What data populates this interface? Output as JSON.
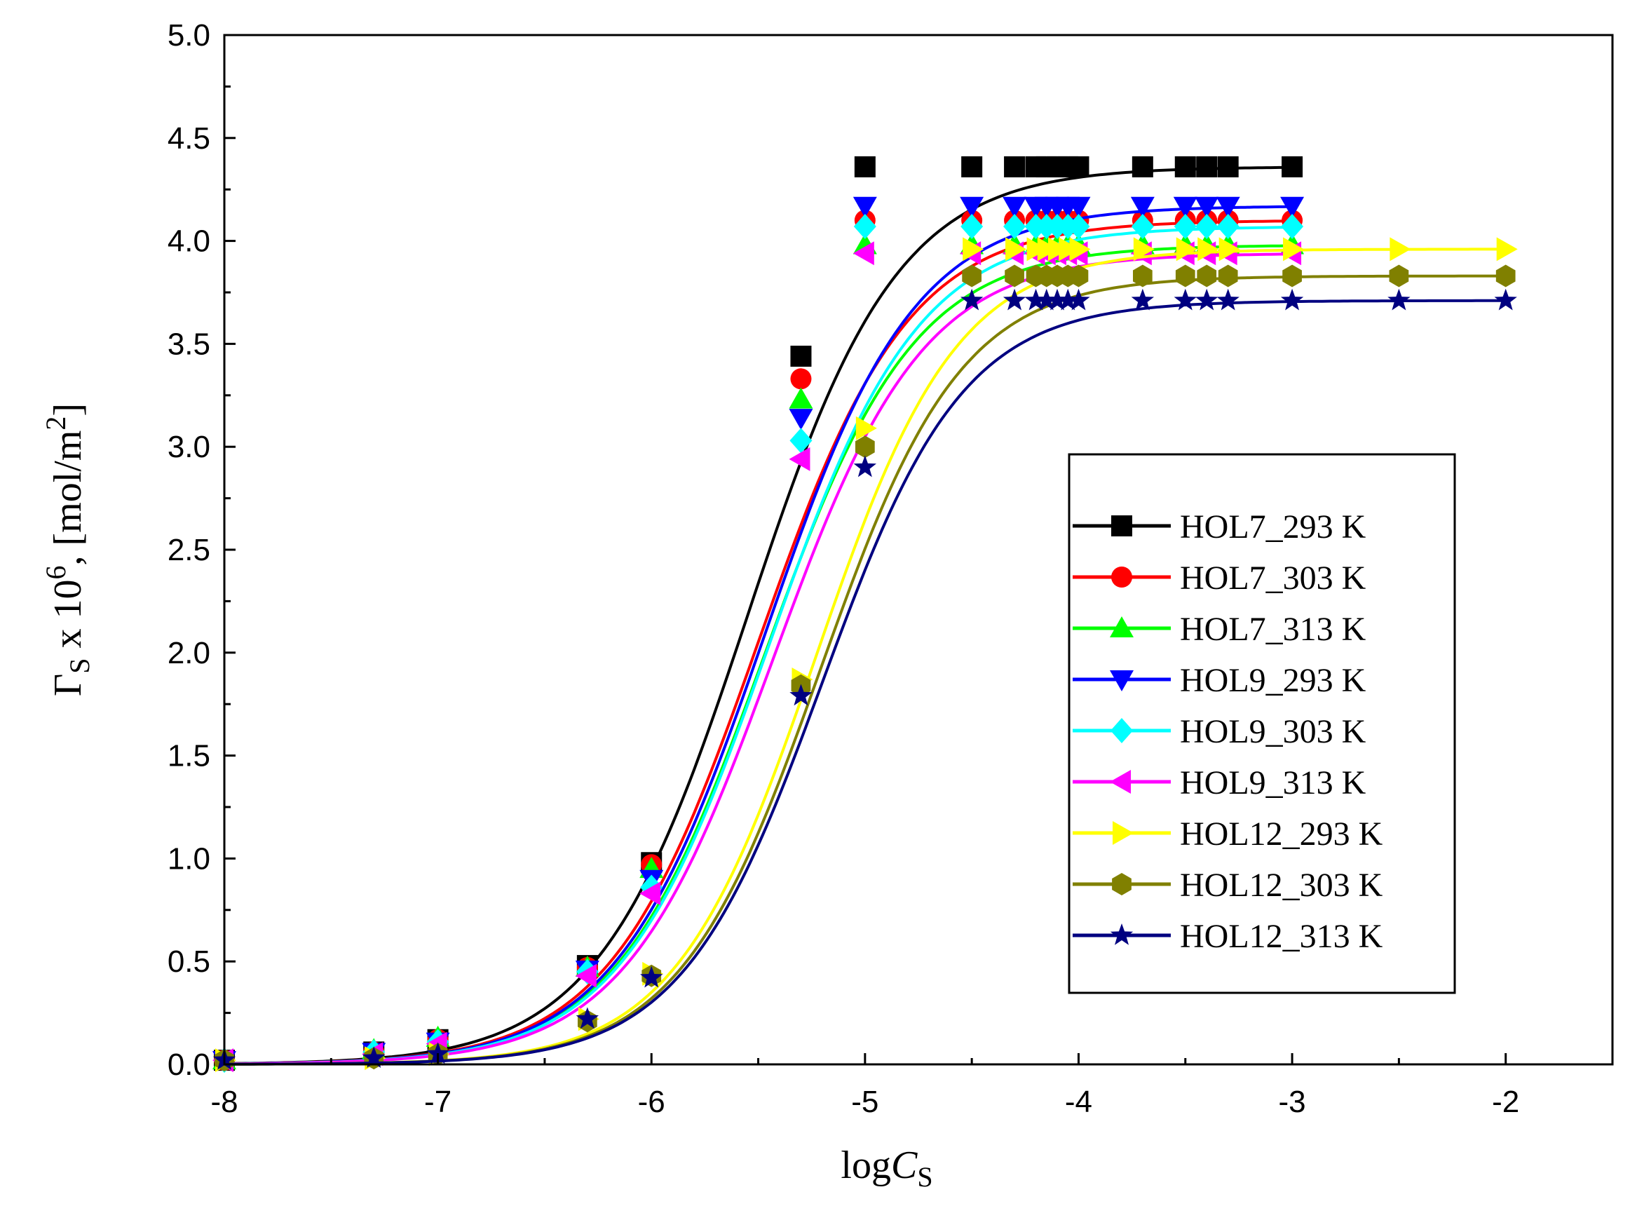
{
  "chart_data": {
    "type": "line",
    "title": "",
    "xlabel": "logC_S",
    "xlabel_parts": {
      "prefix": "log",
      "var": "C",
      "sub": "S"
    },
    "ylabel": "Γ_S x 10^6, [mol/m^2]",
    "ylabel_parts": {
      "gamma": "Γ",
      "sub": "S",
      "mid": " x 10",
      "exp": "6",
      "unit": ", [mol/m",
      "unit_exp": "2",
      "close": "]"
    },
    "xlim": [
      -8,
      -1.5
    ],
    "ylim": [
      0,
      5
    ],
    "x_ticks": [
      -8,
      -7,
      -6,
      -5,
      -4,
      -3,
      -2
    ],
    "x_tick_labels": [
      "-8",
      "-7",
      "-6",
      "-5",
      "-4",
      "-3",
      "-2"
    ],
    "y_ticks": [
      0,
      0.5,
      1,
      1.5,
      2,
      2.5,
      3,
      3.5,
      4,
      4.5,
      5
    ],
    "y_tick_labels": [
      "0.0",
      "0.5",
      "1.0",
      "1.5",
      "2.0",
      "2.5",
      "3.0",
      "3.5",
      "4.0",
      "4.5",
      "5.0"
    ],
    "legend_position": "middle-right",
    "grid": false,
    "series": [
      {
        "name": "HOL7_293 K",
        "color": "#000000",
        "marker": "square",
        "plateau": 4.36,
        "x50": -5.55,
        "width": 0.35,
        "x": [
          -8,
          -7.3,
          -7,
          -6.3,
          -6,
          -5.3,
          -5,
          -4.5,
          -4.3,
          -4.2,
          -4.15,
          -4.1,
          -4.05,
          -4,
          -3.7,
          -3.5,
          -3.4,
          -3.3,
          -3
        ],
        "y": [
          0.02,
          0.06,
          0.12,
          0.48,
          0.98,
          3.44,
          4.36,
          4.36,
          4.36,
          4.36,
          4.36,
          4.36,
          4.36,
          4.36,
          4.36,
          4.36,
          4.36,
          4.36,
          4.36
        ]
      },
      {
        "name": "HOL7_303 K",
        "color": "#ff0000",
        "marker": "circle",
        "plateau": 4.1,
        "x50": -5.5,
        "width": 0.35,
        "x": [
          -8,
          -7.3,
          -7,
          -6.3,
          -6,
          -5.3,
          -5,
          -4.5,
          -4.3,
          -4.2,
          -4.15,
          -4.1,
          -4.05,
          -4,
          -3.7,
          -3.5,
          -3.4,
          -3.3,
          -3
        ],
        "y": [
          0.02,
          0.06,
          0.12,
          0.47,
          0.97,
          3.33,
          4.1,
          4.1,
          4.1,
          4.1,
          4.1,
          4.1,
          4.1,
          4.1,
          4.1,
          4.1,
          4.1,
          4.1,
          4.1
        ]
      },
      {
        "name": "HOL7_313 K",
        "color": "#00ff00",
        "marker": "triangle-up",
        "plateau": 3.98,
        "x50": -5.47,
        "width": 0.35,
        "x": [
          -8,
          -7.3,
          -7,
          -6.3,
          -6,
          -5.3,
          -5,
          -4.5,
          -4.3,
          -4.2,
          -4.15,
          -4.1,
          -4.05,
          -4,
          -3.7,
          -3.5,
          -3.4,
          -3.3,
          -3
        ],
        "y": [
          0.02,
          0.07,
          0.13,
          0.47,
          0.95,
          3.23,
          3.98,
          3.98,
          3.98,
          3.98,
          3.98,
          3.98,
          3.98,
          3.98,
          3.98,
          3.98,
          3.98,
          3.98,
          3.98
        ]
      },
      {
        "name": "HOL9_293 K",
        "color": "#0000ff",
        "marker": "triangle-down",
        "plateau": 4.17,
        "x50": -5.47,
        "width": 0.35,
        "x": [
          -8,
          -7.3,
          -7,
          -6.3,
          -6,
          -5.3,
          -5,
          -4.5,
          -4.3,
          -4.2,
          -4.15,
          -4.1,
          -4.05,
          -4,
          -3.7,
          -3.5,
          -3.4,
          -3.3,
          -3
        ],
        "y": [
          0.02,
          0.06,
          0.11,
          0.46,
          0.9,
          3.14,
          4.17,
          4.17,
          4.17,
          4.17,
          4.17,
          4.17,
          4.17,
          4.17,
          4.17,
          4.17,
          4.17,
          4.17,
          4.17
        ]
      },
      {
        "name": "HOL9_303 K",
        "color": "#00ffff",
        "marker": "diamond",
        "plateau": 4.07,
        "x50": -5.45,
        "width": 0.35,
        "x": [
          -8,
          -7.3,
          -7,
          -6.3,
          -6,
          -5.3,
          -5,
          -4.5,
          -4.3,
          -4.2,
          -4.15,
          -4.1,
          -4.05,
          -4,
          -3.7,
          -3.5,
          -3.4,
          -3.3,
          -3
        ],
        "y": [
          0.02,
          0.06,
          0.11,
          0.45,
          0.86,
          3.03,
          4.07,
          4.07,
          4.07,
          4.07,
          4.07,
          4.07,
          4.07,
          4.07,
          4.07,
          4.07,
          4.07,
          4.07,
          4.07
        ]
      },
      {
        "name": "HOL9_313 K",
        "color": "#ff00ff",
        "marker": "triangle-left",
        "plateau": 3.94,
        "x50": -5.43,
        "width": 0.35,
        "x": [
          -8,
          -7.3,
          -7,
          -6.3,
          -6,
          -5.3,
          -5,
          -4.5,
          -4.3,
          -4.2,
          -4.15,
          -4.1,
          -4.05,
          -4,
          -3.7,
          -3.5,
          -3.4,
          -3.3,
          -3
        ],
        "y": [
          0.02,
          0.05,
          0.1,
          0.43,
          0.83,
          2.94,
          3.94,
          3.94,
          3.94,
          3.94,
          3.94,
          3.94,
          3.94,
          3.94,
          3.94,
          3.94,
          3.94,
          3.94,
          3.94
        ]
      },
      {
        "name": "HOL12_293 K",
        "color": "#ffff00",
        "marker": "triangle-right",
        "plateau": 3.96,
        "x50": -5.23,
        "width": 0.33,
        "x": [
          -8,
          -7.3,
          -7,
          -6.3,
          -6,
          -5.3,
          -5,
          -4.5,
          -4.3,
          -4.2,
          -4.15,
          -4.1,
          -4.05,
          -4,
          -3.7,
          -3.5,
          -3.4,
          -3.3,
          -3,
          -2.5,
          -2
        ],
        "y": [
          0.02,
          0.03,
          0.05,
          0.22,
          0.44,
          1.87,
          3.09,
          3.96,
          3.96,
          3.96,
          3.96,
          3.96,
          3.96,
          3.96,
          3.96,
          3.96,
          3.96,
          3.96,
          3.96,
          3.96,
          3.96
        ]
      },
      {
        "name": "HOL12_303 K",
        "color": "#808000",
        "marker": "hexagon",
        "plateau": 3.83,
        "x50": -5.21,
        "width": 0.33,
        "x": [
          -8,
          -7.3,
          -7,
          -6.3,
          -6,
          -5.3,
          -5,
          -4.5,
          -4.3,
          -4.2,
          -4.15,
          -4.1,
          -4.05,
          -4,
          -3.7,
          -3.5,
          -3.4,
          -3.3,
          -3,
          -2.5,
          -2
        ],
        "y": [
          0.02,
          0.03,
          0.05,
          0.21,
          0.43,
          1.84,
          3.0,
          3.83,
          3.83,
          3.83,
          3.83,
          3.83,
          3.83,
          3.83,
          3.83,
          3.83,
          3.83,
          3.83,
          3.83,
          3.83,
          3.83
        ]
      },
      {
        "name": "HOL12_313 K",
        "color": "#000080",
        "marker": "star",
        "plateau": 3.71,
        "x50": -5.2,
        "width": 0.33,
        "x": [
          -8,
          -7.3,
          -7,
          -6.3,
          -6,
          -5.3,
          -5,
          -4.5,
          -4.3,
          -4.2,
          -4.15,
          -4.1,
          -4.05,
          -4,
          -3.7,
          -3.5,
          -3.4,
          -3.3,
          -3,
          -2.5,
          -2
        ],
        "y": [
          0.02,
          0.03,
          0.05,
          0.22,
          0.42,
          1.79,
          2.9,
          3.71,
          3.71,
          3.71,
          3.71,
          3.71,
          3.71,
          3.71,
          3.71,
          3.71,
          3.71,
          3.71,
          3.71,
          3.71,
          3.71
        ]
      }
    ]
  }
}
